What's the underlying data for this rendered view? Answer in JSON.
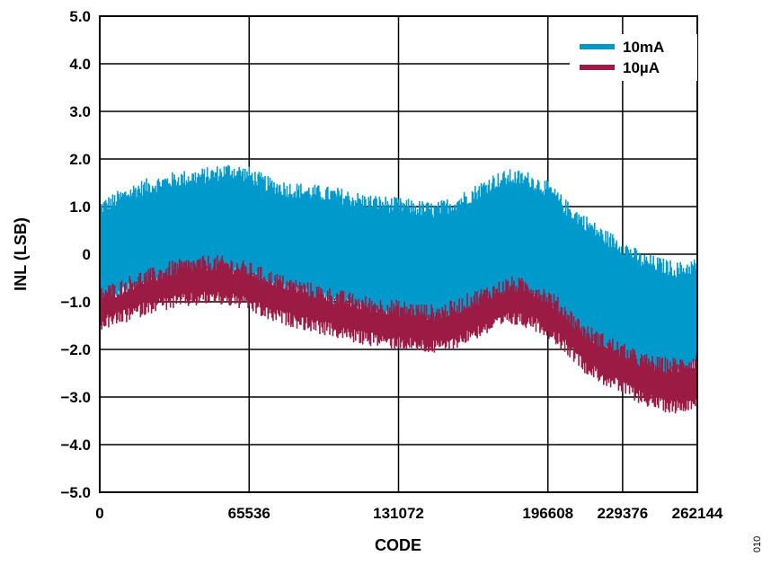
{
  "chart_data": {
    "type": "line",
    "xlabel": "CODE",
    "ylabel": "INL (LSB)",
    "xlim": [
      0,
      262144
    ],
    "ylim": [
      -5.0,
      5.0
    ],
    "x_ticks": [
      "0",
      "65536",
      "131072",
      "196608",
      "229376",
      "262144"
    ],
    "y_ticks": [
      "5.0",
      "4.0",
      "3.0",
      "2.0",
      "1.0",
      "0",
      "−1.0",
      "−2.0",
      "−3.0",
      "−4.0",
      "−5.0"
    ],
    "grid": true,
    "legend_position": "top-right",
    "figure_id": "010",
    "series": [
      {
        "name": "10mA",
        "color": "#0099cc",
        "x": [
          0,
          8192,
          16384,
          24576,
          32768,
          40960,
          49152,
          57344,
          65536,
          73728,
          81920,
          90112,
          98304,
          106496,
          114688,
          122880,
          131072,
          139264,
          147456,
          155648,
          163840,
          172032,
          180224,
          188416,
          196608,
          204800,
          212992,
          221184,
          229376,
          237568,
          245760,
          253952,
          262144
        ],
        "upper": [
          0.9,
          1.1,
          1.3,
          1.4,
          1.5,
          1.55,
          1.6,
          1.7,
          1.6,
          1.4,
          1.3,
          1.25,
          1.2,
          1.15,
          1.05,
          1.0,
          0.95,
          0.9,
          0.85,
          1.0,
          1.2,
          1.45,
          1.55,
          1.5,
          1.3,
          0.9,
          0.6,
          0.3,
          0.1,
          -0.2,
          -0.3,
          -0.4,
          -0.3
        ],
        "lower": [
          -1.0,
          -0.8,
          -0.6,
          -0.5,
          -0.45,
          -0.4,
          -0.4,
          -0.35,
          -0.4,
          -0.6,
          -0.7,
          -0.8,
          -0.9,
          -1.0,
          -1.1,
          -1.2,
          -1.3,
          -1.35,
          -1.4,
          -1.3,
          -1.1,
          -0.9,
          -0.8,
          -0.85,
          -1.1,
          -1.4,
          -1.8,
          -2.0,
          -2.2,
          -2.4,
          -2.5,
          -2.5,
          -2.3
        ]
      },
      {
        "name": "10µA",
        "color": "#9b1b45",
        "x": [
          0,
          8192,
          16384,
          24576,
          32768,
          40960,
          49152,
          57344,
          65536,
          73728,
          81920,
          90112,
          98304,
          106496,
          114688,
          122880,
          131072,
          139264,
          147456,
          155648,
          163840,
          172032,
          180224,
          188416,
          196608,
          204800,
          212992,
          221184,
          229376,
          237568,
          245760,
          253952,
          262144
        ],
        "upper": [
          -0.9,
          -0.8,
          -0.6,
          -0.5,
          -0.35,
          -0.3,
          -0.25,
          -0.3,
          -0.4,
          -0.55,
          -0.7,
          -0.8,
          -0.9,
          -1.0,
          -1.1,
          -1.15,
          -1.2,
          -1.25,
          -1.3,
          -1.2,
          -1.0,
          -0.85,
          -0.7,
          -0.75,
          -0.95,
          -1.3,
          -1.7,
          -1.9,
          -2.1,
          -2.3,
          -2.4,
          -2.4,
          -2.3
        ],
        "lower": [
          -1.4,
          -1.3,
          -1.15,
          -1.0,
          -0.95,
          -0.9,
          -0.85,
          -0.9,
          -1.0,
          -1.2,
          -1.3,
          -1.4,
          -1.5,
          -1.6,
          -1.7,
          -1.75,
          -1.8,
          -1.85,
          -1.9,
          -1.8,
          -1.6,
          -1.45,
          -1.3,
          -1.35,
          -1.55,
          -1.9,
          -2.3,
          -2.55,
          -2.75,
          -2.95,
          -3.1,
          -3.15,
          -3.0
        ]
      }
    ]
  }
}
